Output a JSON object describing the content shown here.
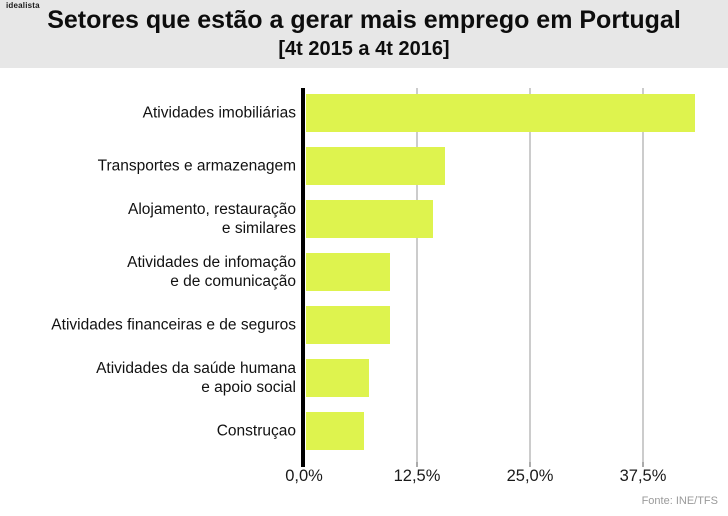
{
  "branding": {
    "logo_text": "idealista"
  },
  "header": {
    "title": "Setores que estão a gerar mais emprego em Portugal",
    "subtitle": "[4t 2015 a 4t 2016]"
  },
  "chart_data": {
    "type": "bar",
    "orientation": "horizontal",
    "title": "Setores que estão a gerar mais emprego em Portugal",
    "subtitle": "[4t 2015 a 4t 2016]",
    "categories": [
      "Atividades imobiliárias",
      "Transportes e armazenagem",
      "Alojamento, restauração\ne similares",
      "Atividades de infomação\ne de comunicação",
      "Atividades financeiras e de seguros",
      "Atividades da saúde humana\ne apoio social",
      "Construçao"
    ],
    "values": [
      43,
      15.4,
      14,
      9.3,
      9.3,
      7,
      6.4
    ],
    "unit": "%",
    "xlim": [
      0,
      47
    ],
    "xticks": {
      "values": [
        0,
        12.5,
        25,
        37.5
      ],
      "labels": [
        "0,0%",
        "12,5%",
        "25,0%",
        "37,5%"
      ]
    },
    "grid": true,
    "legend": "none",
    "bar_color": "#def34e",
    "axis_color": "#000000",
    "gridline_color": "#cccccc"
  },
  "footer": {
    "source": "Fonte: INE/TFS"
  }
}
